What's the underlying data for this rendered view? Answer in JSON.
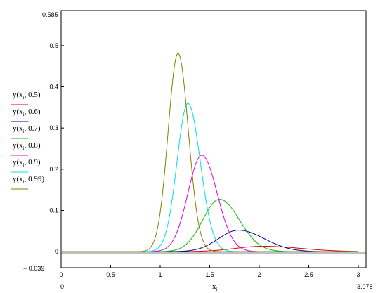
{
  "chart_data": {
    "type": "line",
    "xlabel": "x",
    "xlabel_sub": "i",
    "xlim": [
      0,
      3.078
    ],
    "ylim": [
      -0.039,
      0.585
    ],
    "x_range_labels": {
      "min": "0",
      "max": "3.078"
    },
    "y_range_labels": {
      "min": "− 0.039",
      "max": "0.585"
    },
    "x_ticks": [
      0,
      0.5,
      1,
      1.5,
      2,
      2.5,
      3
    ],
    "x_tick_labels": [
      "0",
      "0.5",
      "1",
      "1.5",
      "2",
      "2.5",
      "3"
    ],
    "y_ticks": [
      0,
      0.1,
      0.2,
      0.3,
      0.4,
      0.5
    ],
    "y_tick_labels": [
      "0",
      "0.1",
      "0.2",
      "0.3",
      "0.4",
      "0.5"
    ],
    "grid": false,
    "legend_position": "left",
    "series": [
      {
        "name": "y(x_i, 0.5)",
        "color": "#e00000",
        "peak_x": 2.04,
        "peak_y": 0.013,
        "sigma_left": 0.28,
        "sigma_right": 0.38
      },
      {
        "name": "y(x_i, 0.6)",
        "color": "#000090",
        "peak_x": 1.79,
        "peak_y": 0.052,
        "sigma_left": 0.2,
        "sigma_right": 0.26
      },
      {
        "name": "y(x_i, 0.7)",
        "color": "#00c000",
        "peak_x": 1.6,
        "peak_y": 0.127,
        "sigma_left": 0.17,
        "sigma_right": 0.2
      },
      {
        "name": "y(x_i, 0.8)",
        "color": "#e000e0",
        "peak_x": 1.42,
        "peak_y": 0.234,
        "sigma_left": 0.14,
        "sigma_right": 0.155
      },
      {
        "name": "y(x_i, 0.9)",
        "color": "#00e0e0",
        "peak_x": 1.28,
        "peak_y": 0.36,
        "sigma_left": 0.11,
        "sigma_right": 0.125
      },
      {
        "name": "y(x_i, 0.99)",
        "color": "#808000",
        "peak_x": 1.18,
        "peak_y": 0.481,
        "sigma_left": 0.1,
        "sigma_right": 0.105
      }
    ],
    "legend": [
      {
        "func": "y",
        "var": "x",
        "sub": "i",
        "param": "0.5"
      },
      {
        "func": "y",
        "var": "x",
        "sub": "i",
        "param": "0.6"
      },
      {
        "func": "y",
        "var": "x",
        "sub": "i",
        "param": "0.7"
      },
      {
        "func": "y",
        "var": "x",
        "sub": "i",
        "param": "0.8"
      },
      {
        "func": "y",
        "var": "x",
        "sub": "i",
        "param": "0.9"
      },
      {
        "func": "y",
        "var": "x",
        "sub": "i",
        "param": "0.99"
      }
    ]
  }
}
